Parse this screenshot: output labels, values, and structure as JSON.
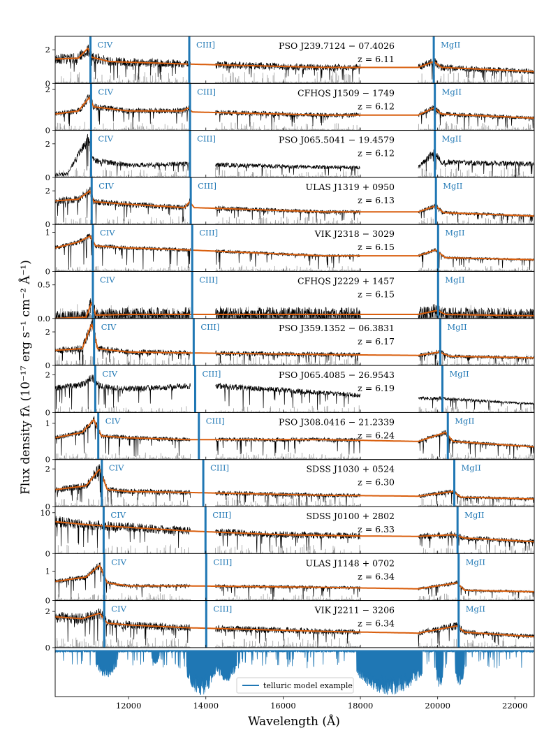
{
  "chart_data": {
    "type": "line",
    "xlabel": "Wavelength (Å)",
    "ylabel": "Flux density fλ (10⁻¹⁷ erg s⁻¹ cm⁻² Å⁻¹)",
    "xlim": [
      10100,
      22500
    ],
    "xticks": [
      12000,
      14000,
      16000,
      18000,
      20000,
      22000
    ],
    "xtick_labels": [
      "12000",
      "14000",
      "16000",
      "18000",
      "20000",
      "22000"
    ],
    "line_rest_wavelengths": {
      "CIV": 1549.06,
      "CIII]": 1908.73,
      "MgII": 2798.75
    },
    "line_labels": [
      "CIV",
      "CIII]",
      "MgII"
    ],
    "colors": {
      "spectrum": "#000000",
      "noise": "#a0a0a0",
      "model": "#d95f0e",
      "lines": "#1f77b4",
      "telluric": "#1f77b4"
    },
    "gaps": [
      [
        13600,
        14250
      ],
      [
        18000,
        19500
      ]
    ],
    "panels": [
      {
        "name": "PSO J239.7124 − 07.4026",
        "z": 6.11,
        "z_label": "z = 6.11",
        "ylim": [
          0,
          2.8
        ],
        "yticks": [
          0,
          2
        ],
        "ytick_labels": [
          "0",
          "2"
        ],
        "model": [
          [
            10100,
            1.45
          ],
          [
            10700,
            1.5
          ],
          [
            10950,
            2.1
          ],
          [
            11050,
            1.55
          ],
          [
            11500,
            1.3
          ],
          [
            13500,
            1.15
          ],
          [
            17000,
            0.95
          ],
          [
            19500,
            0.95
          ],
          [
            19900,
            1.3
          ],
          [
            20100,
            0.95
          ],
          [
            22500,
            0.7
          ]
        ],
        "noise": 0.35,
        "drawn": true,
        "has_model": true
      },
      {
        "name": "CFHQS J1509 − 1749",
        "z": 6.12,
        "z_label": "z = 6.12",
        "ylim": [
          0,
          2.3
        ],
        "yticks": [
          0,
          2
        ],
        "ytick_labels": [
          "0",
          "2"
        ],
        "model": [
          [
            10100,
            0.8
          ],
          [
            10700,
            0.95
          ],
          [
            10980,
            1.6
          ],
          [
            11100,
            1.15
          ],
          [
            12000,
            0.95
          ],
          [
            13400,
            0.95
          ],
          [
            13550,
            1.1
          ],
          [
            13650,
            0.9
          ],
          [
            17000,
            0.75
          ],
          [
            19500,
            0.75
          ],
          [
            19900,
            1.1
          ],
          [
            20100,
            0.8
          ],
          [
            22500,
            0.6
          ]
        ],
        "noise": 0.25,
        "drawn": true,
        "has_model": true
      },
      {
        "name": "PSO J065.5041 − 19.4579",
        "z": 6.12,
        "z_label": "z = 6.12",
        "ylim": [
          0,
          2.8
        ],
        "yticks": [
          0,
          2
        ],
        "ytick_labels": [
          "0",
          "2"
        ],
        "model": [
          [
            10100,
            0.15
          ],
          [
            10400,
            0.2
          ],
          [
            10750,
            1.5
          ],
          [
            10950,
            2.3
          ],
          [
            11100,
            1.0
          ],
          [
            12000,
            0.75
          ],
          [
            13500,
            0.8
          ],
          [
            17000,
            0.6
          ],
          [
            19500,
            0.6
          ],
          [
            19900,
            1.5
          ],
          [
            20100,
            0.9
          ],
          [
            22500,
            0.8
          ]
        ],
        "noise": 0.3,
        "drawn": true,
        "has_model": false
      },
      {
        "name": "ULAS J1319 + 0950",
        "z": 6.13,
        "z_label": "z = 6.13",
        "ylim": [
          0,
          2.8
        ],
        "yticks": [
          0,
          2
        ],
        "ytick_labels": [
          "0",
          "2"
        ],
        "model": [
          [
            10100,
            1.4
          ],
          [
            10700,
            1.5
          ],
          [
            11000,
            2.0
          ],
          [
            11100,
            1.35
          ],
          [
            12000,
            1.2
          ],
          [
            13450,
            1.0
          ],
          [
            13580,
            1.35
          ],
          [
            13700,
            1.0
          ],
          [
            17000,
            0.75
          ],
          [
            19500,
            0.75
          ],
          [
            19950,
            1.1
          ],
          [
            20150,
            0.7
          ],
          [
            22500,
            0.5
          ]
        ],
        "noise": 0.25,
        "drawn": true,
        "has_model": true
      },
      {
        "name": "VIK J2318 − 3029",
        "z": 6.15,
        "z_label": "z = 6.15",
        "ylim": [
          0,
          1.2
        ],
        "yticks": [
          0,
          1
        ],
        "ytick_labels": [
          "0",
          "1"
        ],
        "model": [
          [
            10100,
            0.6
          ],
          [
            10700,
            0.75
          ],
          [
            11000,
            0.9
          ],
          [
            11150,
            0.65
          ],
          [
            12000,
            0.6
          ],
          [
            13500,
            0.55
          ],
          [
            17000,
            0.4
          ],
          [
            19500,
            0.4
          ],
          [
            19950,
            0.55
          ],
          [
            20200,
            0.35
          ],
          [
            22500,
            0.3
          ]
        ],
        "noise": 0.15,
        "drawn": true,
        "has_model": true
      },
      {
        "name": "CFHQS J2229 + 1457",
        "z": 6.15,
        "z_label": "z = 6.15",
        "ylim": [
          0,
          0.7
        ],
        "yticks": [
          0,
          0.5
        ],
        "ytick_labels": [
          "0.0",
          "0.5"
        ],
        "model": [
          [
            10100,
            0.0
          ],
          [
            10900,
            0.02
          ],
          [
            11050,
            0.25
          ],
          [
            11150,
            0.05
          ],
          [
            12000,
            0.06
          ],
          [
            17000,
            0.06
          ],
          [
            19500,
            0.06
          ],
          [
            20000,
            0.12
          ],
          [
            20200,
            0.06
          ],
          [
            22500,
            0.04
          ]
        ],
        "noise": 0.3,
        "drawn": true,
        "has_model": true
      },
      {
        "name": "PSO J359.1352 − 06.3831",
        "z": 6.17,
        "z_label": "z = 6.17",
        "ylim": [
          0,
          2.8
        ],
        "yticks": [
          0,
          2
        ],
        "ytick_labels": [
          "0",
          "2"
        ],
        "model": [
          [
            10100,
            0.9
          ],
          [
            10800,
            1.0
          ],
          [
            11050,
            2.5
          ],
          [
            11200,
            1.0
          ],
          [
            12000,
            0.8
          ],
          [
            13500,
            0.75
          ],
          [
            17000,
            0.65
          ],
          [
            19500,
            0.6
          ],
          [
            20050,
            0.8
          ],
          [
            20300,
            0.55
          ],
          [
            22500,
            0.45
          ]
        ],
        "noise": 0.35,
        "drawn": true,
        "has_model": true
      },
      {
        "name": "PSO J065.4085 − 26.9543",
        "z": 6.19,
        "z_label": "z = 6.19",
        "ylim": [
          0,
          2.5
        ],
        "yticks": [
          0,
          2
        ],
        "ytick_labels": [
          "0",
          "2"
        ],
        "model": [
          [
            10100,
            1.3
          ],
          [
            10800,
            1.5
          ],
          [
            11050,
            1.9
          ],
          [
            11250,
            1.4
          ],
          [
            12000,
            1.25
          ],
          [
            13500,
            1.4
          ],
          [
            14300,
            1.4
          ],
          [
            17000,
            1.05
          ],
          [
            18000,
            0.9
          ],
          [
            19500,
            0.75
          ],
          [
            20100,
            0.75
          ],
          [
            22500,
            0.45
          ]
        ],
        "noise": 0.2,
        "drawn": true,
        "has_model": false
      },
      {
        "name": "PSO J308.0416 − 21.2339",
        "z": 6.24,
        "z_label": "z = 6.24",
        "ylim": [
          0,
          1.3
        ],
        "yticks": [
          0,
          1
        ],
        "ytick_labels": [
          "0",
          "1"
        ],
        "model": [
          [
            10100,
            0.6
          ],
          [
            10800,
            0.75
          ],
          [
            11100,
            1.1
          ],
          [
            11300,
            0.65
          ],
          [
            12000,
            0.6
          ],
          [
            13500,
            0.55
          ],
          [
            17000,
            0.55
          ],
          [
            19500,
            0.5
          ],
          [
            20200,
            0.75
          ],
          [
            20400,
            0.5
          ],
          [
            22500,
            0.35
          ]
        ],
        "noise": 0.18,
        "drawn": true,
        "has_model": true
      },
      {
        "name": "SDSS J1030 + 0524",
        "z": 6.3,
        "z_label": "z = 6.30",
        "ylim": [
          0,
          2.5
        ],
        "yticks": [
          0,
          2
        ],
        "ytick_labels": [
          "0",
          "2"
        ],
        "model": [
          [
            10100,
            0.9
          ],
          [
            10900,
            1.1
          ],
          [
            11250,
            2.0
          ],
          [
            11450,
            0.9
          ],
          [
            12000,
            0.8
          ],
          [
            13500,
            0.75
          ],
          [
            17000,
            0.6
          ],
          [
            19500,
            0.55
          ],
          [
            20400,
            0.8
          ],
          [
            20600,
            0.5
          ],
          [
            22500,
            0.4
          ]
        ],
        "noise": 0.3,
        "drawn": true,
        "has_model": true
      },
      {
        "name": "SDSS J0100 + 2802",
        "z": 6.33,
        "z_label": "z = 6.33",
        "ylim": [
          0,
          11.5
        ],
        "yticks": [
          0,
          10
        ],
        "ytick_labels": [
          "0",
          "10"
        ],
        "model": [
          [
            10100,
            7.8
          ],
          [
            11000,
            7.0
          ],
          [
            12000,
            6.4
          ],
          [
            13600,
            5.5
          ],
          [
            16000,
            4.6
          ],
          [
            18000,
            4.3
          ],
          [
            19500,
            4.2
          ],
          [
            20400,
            4.6
          ],
          [
            20700,
            3.8
          ],
          [
            22500,
            2.9
          ]
        ],
        "noise": 0.3,
        "drawn": true,
        "has_model": true
      },
      {
        "name": "ULAS J1148 + 0702",
        "z": 6.34,
        "z_label": "z = 6.34",
        "ylim": [
          0,
          1.6
        ],
        "yticks": [
          0,
          1
        ],
        "ytick_labels": [
          "0",
          "1"
        ],
        "model": [
          [
            10100,
            0.65
          ],
          [
            10900,
            0.8
          ],
          [
            11250,
            1.2
          ],
          [
            11450,
            0.6
          ],
          [
            12000,
            0.5
          ],
          [
            13500,
            0.5
          ],
          [
            17000,
            0.45
          ],
          [
            19500,
            0.4
          ],
          [
            20500,
            0.6
          ],
          [
            20700,
            0.35
          ],
          [
            22500,
            0.3
          ]
        ],
        "noise": 0.2,
        "drawn": true,
        "has_model": true
      },
      {
        "name": "VIK J2211 − 3206",
        "z": 6.34,
        "z_label": "z = 6.34",
        "ylim": [
          0,
          2.6
        ],
        "yticks": [
          0,
          2
        ],
        "ytick_labels": [
          "0",
          "2"
        ],
        "model": [
          [
            10100,
            1.7
          ],
          [
            10800,
            1.6
          ],
          [
            11250,
            1.9
          ],
          [
            11450,
            1.35
          ],
          [
            12000,
            1.25
          ],
          [
            13500,
            1.1
          ],
          [
            17000,
            0.9
          ],
          [
            19500,
            0.8
          ],
          [
            20500,
            1.2
          ],
          [
            20700,
            0.85
          ],
          [
            22500,
            0.6
          ]
        ],
        "noise": 0.3,
        "drawn": true,
        "has_model": true
      }
    ],
    "telluric": {
      "legend": "telluric model example",
      "absorption_bands": [
        [
          11150,
          11700,
          0.6
        ],
        [
          12600,
          12800,
          0.3
        ],
        [
          13500,
          14250,
          1.0
        ],
        [
          14250,
          14800,
          0.7
        ],
        [
          17900,
          19600,
          1.0
        ],
        [
          19950,
          20150,
          0.85
        ],
        [
          20450,
          20700,
          0.8
        ]
      ]
    }
  }
}
